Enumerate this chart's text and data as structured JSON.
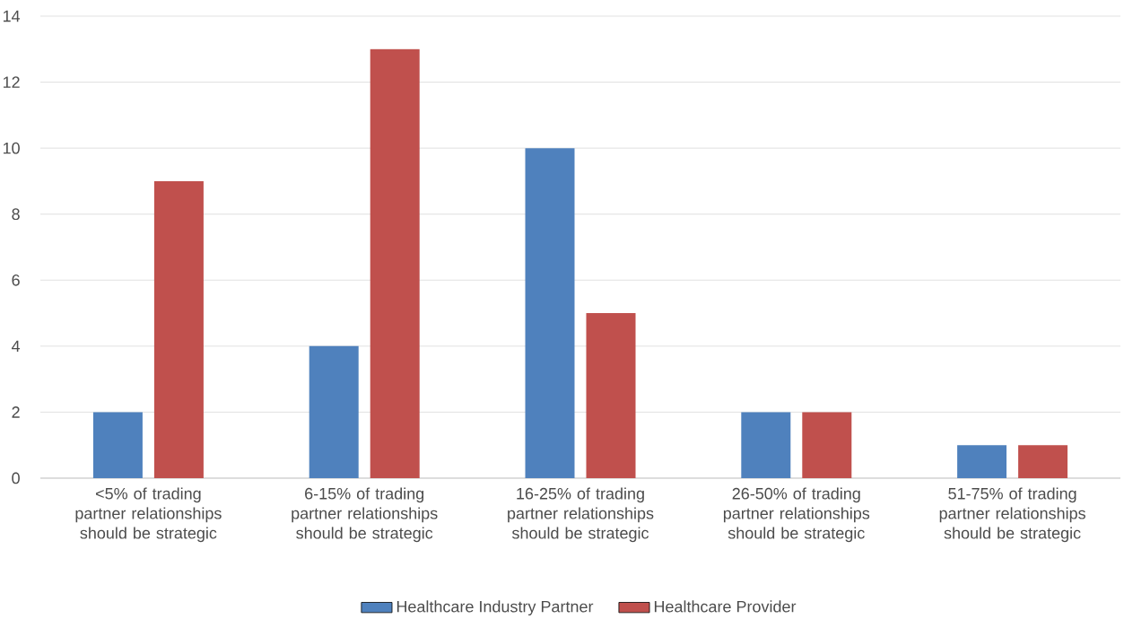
{
  "chart_data": {
    "type": "bar",
    "categories": [
      "<5% of trading partner relationships should be strategic",
      "6-15% of trading partner relationships should be strategic",
      "16-25% of trading partner relationships should be strategic",
      "26-50% of trading partner relationships should be strategic",
      "51-75% of trading partner relationships should be strategic"
    ],
    "series": [
      {
        "name": "Healthcare Industry Partner",
        "color": "#4f81bd",
        "values": [
          2,
          4,
          10,
          2,
          1
        ]
      },
      {
        "name": "Healthcare Provider",
        "color": "#c0504d",
        "values": [
          9,
          13,
          5,
          2,
          1
        ]
      }
    ],
    "ylim": [
      0,
      14
    ],
    "yticks": [
      0,
      2,
      4,
      6,
      8,
      10,
      12,
      14
    ],
    "grid": "y",
    "legend": "bottom"
  }
}
